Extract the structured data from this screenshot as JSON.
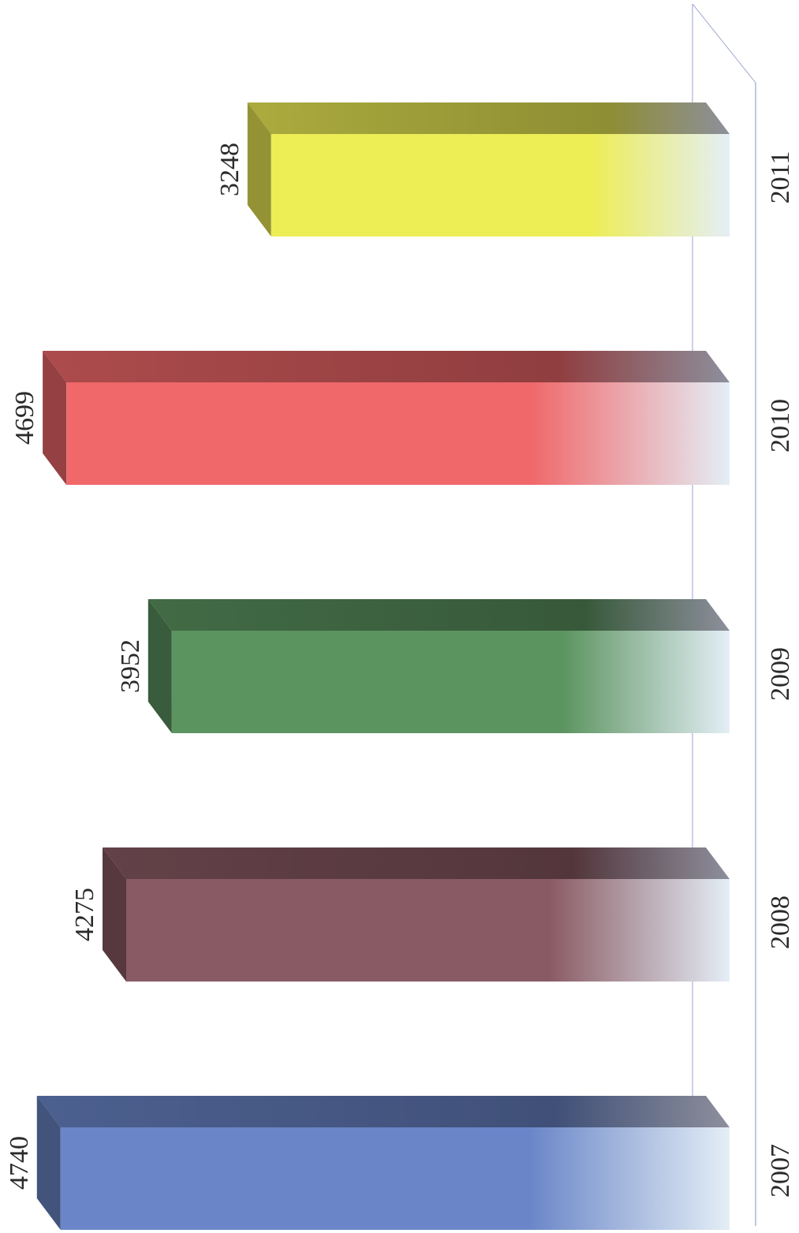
{
  "chart_data": {
    "type": "bar",
    "orientation": "horizontal-3d",
    "categories": [
      "2007",
      "2008",
      "2009",
      "2010",
      "2011"
    ],
    "values": [
      4740,
      4275,
      3952,
      4699,
      3248
    ],
    "title": "",
    "xlabel": "",
    "ylabel": "",
    "value_axis_range": [
      0,
      4750
    ],
    "grid": false,
    "legend": "none",
    "data_labels": true,
    "bar_colors": [
      "#6a86c8",
      "#8a5a64",
      "#5c9460",
      "#f0686a",
      "#eded56"
    ],
    "bar_fade_color": "#e4eef6",
    "axis_line_color": "#9aa3cf"
  }
}
